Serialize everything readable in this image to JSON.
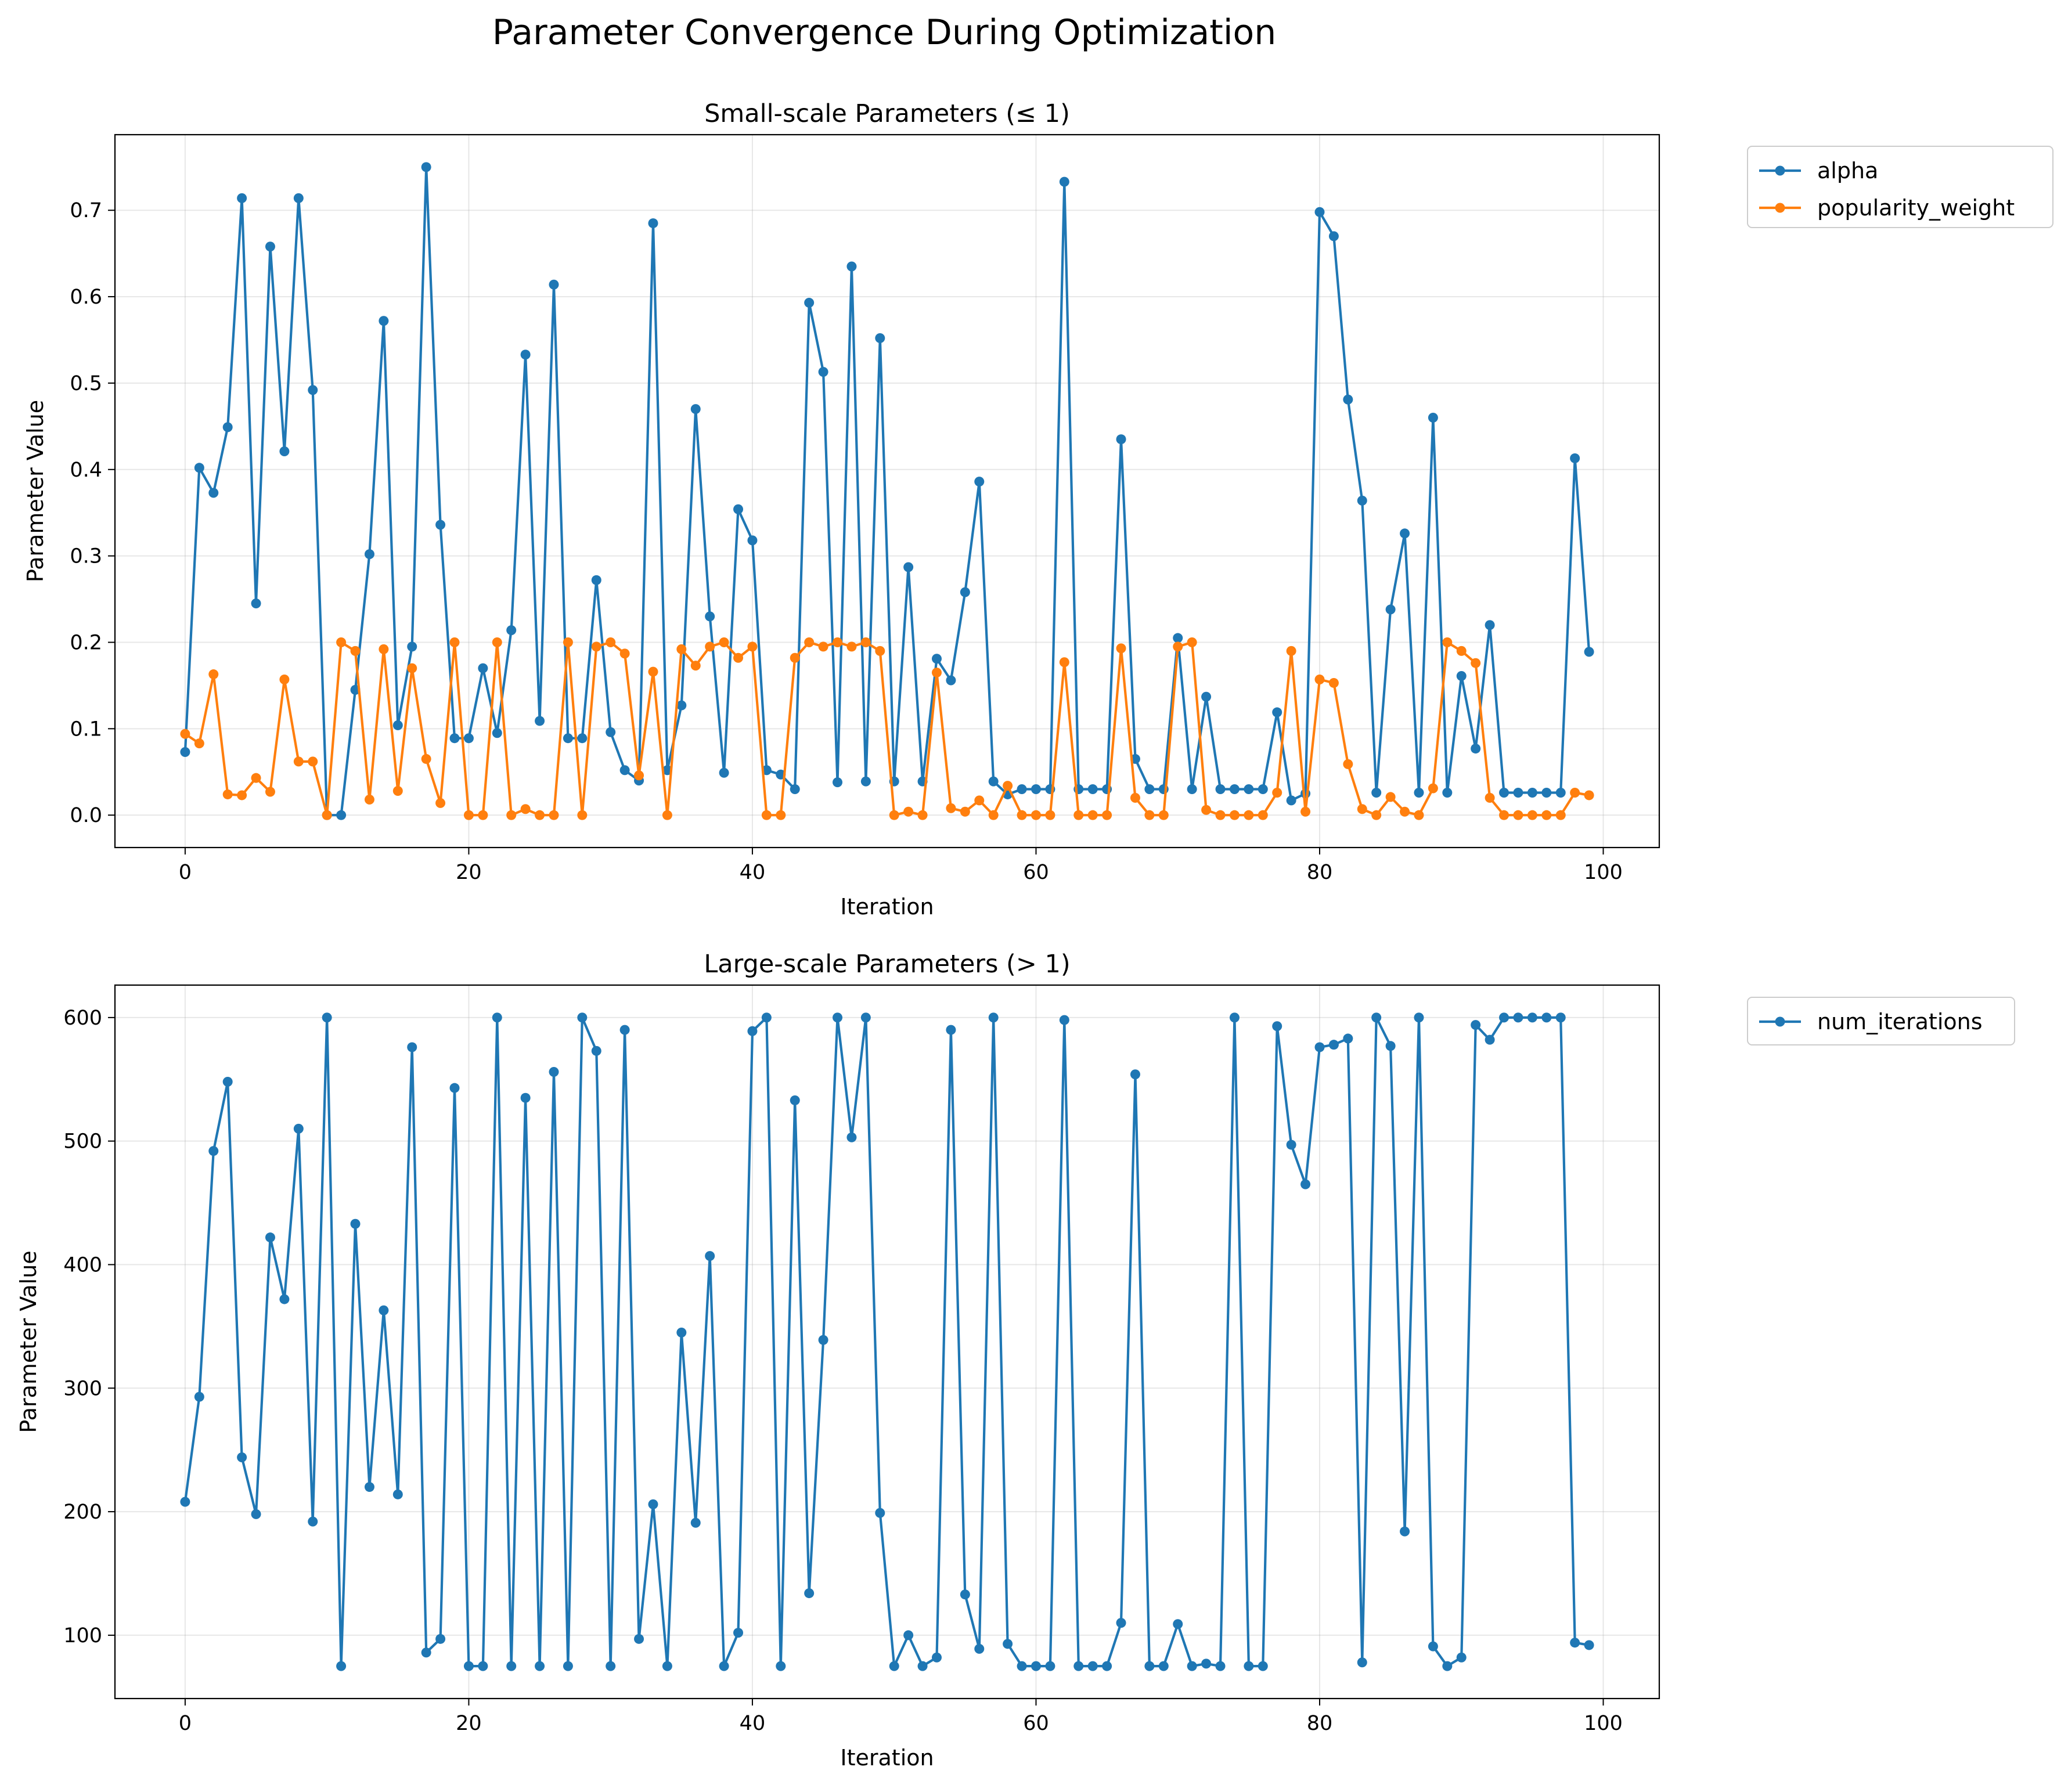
{
  "figure": {
    "title": "Parameter Convergence During Optimization"
  },
  "colors": {
    "blue": "#1f77b4",
    "orange": "#ff7f0e",
    "grid": "#b0b0b0",
    "axis": "#000000"
  },
  "chart_data": [
    {
      "type": "line",
      "title": "Small-scale Parameters (≤ 1)",
      "xlabel": "Iteration",
      "ylabel": "Parameter Value",
      "xlim": [
        -4.95,
        103.95
      ],
      "ylim": [
        -0.0375,
        0.7875
      ],
      "xticks": [
        0,
        20,
        40,
        60,
        80,
        100
      ],
      "yticks": [
        0.0,
        0.1,
        0.2,
        0.3,
        0.4,
        0.5,
        0.6,
        0.7
      ],
      "ytick_labels": [
        "0.0",
        "0.1",
        "0.2",
        "0.3",
        "0.4",
        "0.5",
        "0.6",
        "0.7"
      ],
      "grid": true,
      "legend": "outside-upper-right",
      "series": [
        {
          "name": "alpha",
          "color": "#1f77b4",
          "values": [
            0.073,
            0.402,
            0.373,
            0.449,
            0.714,
            0.245,
            0.658,
            0.421,
            0.714,
            0.492,
            0.0,
            0.0,
            0.145,
            0.302,
            0.572,
            0.104,
            0.195,
            0.75,
            0.336,
            0.089,
            0.089,
            0.17,
            0.095,
            0.214,
            0.533,
            0.109,
            0.614,
            0.089,
            0.089,
            0.272,
            0.096,
            0.052,
            0.04,
            0.685,
            0.052,
            0.127,
            0.47,
            0.23,
            0.049,
            0.354,
            0.318,
            0.052,
            0.047,
            0.03,
            0.593,
            0.513,
            0.038,
            0.635,
            0.039,
            0.552,
            0.039,
            0.287,
            0.039,
            0.181,
            0.156,
            0.258,
            0.386,
            0.039,
            0.024,
            0.03,
            0.03,
            0.03,
            0.733,
            0.03,
            0.03,
            0.03,
            0.435,
            0.065,
            0.03,
            0.03,
            0.205,
            0.03,
            0.137,
            0.03,
            0.03,
            0.03,
            0.03,
            0.119,
            0.017,
            0.025,
            0.698,
            0.67,
            0.481,
            0.364,
            0.026,
            0.238,
            0.326,
            0.026,
            0.46,
            0.026,
            0.161,
            0.077,
            0.22,
            0.026,
            0.026,
            0.026,
            0.026,
            0.026,
            0.413,
            0.189
          ]
        },
        {
          "name": "popularity_weight",
          "color": "#ff7f0e",
          "values": [
            0.094,
            0.083,
            0.163,
            0.024,
            0.023,
            0.043,
            0.027,
            0.157,
            0.062,
            0.062,
            0.0,
            0.2,
            0.19,
            0.018,
            0.192,
            0.028,
            0.17,
            0.065,
            0.014,
            0.2,
            0.0,
            0.0,
            0.2,
            0.0,
            0.007,
            0.0,
            0.0,
            0.2,
            0.0,
            0.195,
            0.2,
            0.187,
            0.046,
            0.166,
            0.0,
            0.192,
            0.173,
            0.195,
            0.2,
            0.182,
            0.195,
            0.0,
            0.0,
            0.182,
            0.2,
            0.195,
            0.2,
            0.195,
            0.2,
            0.19,
            0.0,
            0.004,
            0.0,
            0.165,
            0.008,
            0.004,
            0.017,
            0.0,
            0.034,
            0.0,
            0.0,
            0.0,
            0.177,
            0.0,
            0.0,
            0.0,
            0.193,
            0.02,
            0.0,
            0.0,
            0.195,
            0.2,
            0.006,
            0.0,
            0.0,
            0.0,
            0.0,
            0.026,
            0.19,
            0.004,
            0.157,
            0.153,
            0.059,
            0.007,
            0.0,
            0.021,
            0.004,
            0.0,
            0.031,
            0.2,
            0.19,
            0.176,
            0.02,
            0.0,
            0.0,
            0.0,
            0.0,
            0.0,
            0.026,
            0.023
          ]
        }
      ]
    },
    {
      "type": "line",
      "title": "Large-scale Parameters (> 1)",
      "xlabel": "Iteration",
      "ylabel": "Parameter Value",
      "xlim": [
        -4.95,
        103.95
      ],
      "ylim": [
        48.75,
        626.25
      ],
      "xticks": [
        0,
        20,
        40,
        60,
        80,
        100
      ],
      "yticks": [
        100,
        200,
        300,
        400,
        500,
        600
      ],
      "ytick_labels": [
        "100",
        "200",
        "300",
        "400",
        "500",
        "600"
      ],
      "grid": true,
      "legend": "outside-upper-right",
      "series": [
        {
          "name": "num_iterations",
          "color": "#1f77b4",
          "values": [
            208,
            293,
            492,
            548,
            244,
            198,
            422,
            372,
            510,
            192,
            600,
            75,
            433,
            220,
            363,
            214,
            576,
            86,
            97,
            543,
            75,
            75,
            600,
            75,
            535,
            75,
            556,
            75,
            600,
            573,
            75,
            590,
            97,
            206,
            75,
            345,
            191,
            407,
            75,
            102,
            589,
            600,
            75,
            533,
            134,
            339,
            600,
            503,
            600,
            199,
            75,
            100,
            75,
            82,
            590,
            133,
            89,
            600,
            93,
            75,
            75,
            75,
            598,
            75,
            75,
            75,
            110,
            554,
            75,
            75,
            109,
            75,
            77,
            75,
            600,
            75,
            75,
            593,
            497,
            465,
            576,
            578,
            583,
            78,
            600,
            577,
            184,
            600,
            91,
            75,
            82,
            594,
            582,
            600,
            600,
            600,
            600,
            600,
            94,
            92
          ]
        }
      ]
    }
  ]
}
